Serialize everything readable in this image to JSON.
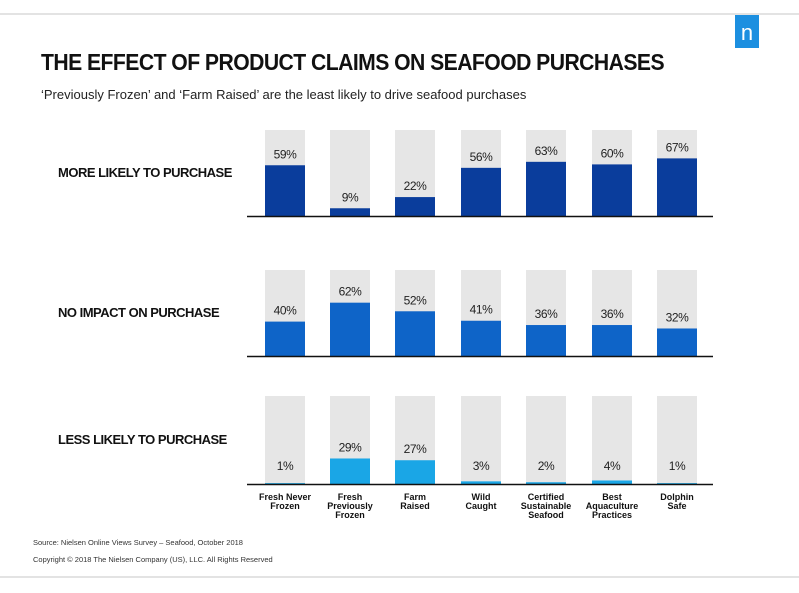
{
  "header": {
    "title": "THE EFFECT OF PRODUCT CLAIMS ON SEAFOOD PURCHASES",
    "subtitle": "‘Previously Frozen’ and ‘Farm Raised’ are the least likely to drive seafood purchases",
    "logo_letter": "n"
  },
  "chart_data": {
    "type": "bar",
    "title": "THE EFFECT OF PRODUCT CLAIMS ON SEAFOOD PURCHASES",
    "categories": [
      [
        "Fresh Never",
        "Frozen"
      ],
      [
        "Fresh",
        "Previously",
        "Frozen"
      ],
      [
        "Farm",
        "Raised"
      ],
      [
        "Wild",
        "Caught"
      ],
      [
        "Certified",
        "Sustainable",
        "Seafood"
      ],
      [
        "Best",
        "Aquaculture",
        "Practices"
      ],
      [
        "Dolphin",
        "Safe"
      ]
    ],
    "ylim": [
      0,
      100
    ],
    "series": [
      {
        "name": "MORE LIKELY TO PURCHASE",
        "values": [
          59,
          9,
          22,
          56,
          63,
          60,
          67
        ],
        "color": "#0a3d9c"
      },
      {
        "name": "NO IMPACT ON PURCHASE",
        "values": [
          40,
          62,
          52,
          41,
          36,
          36,
          32
        ],
        "color": "#0e64c8"
      },
      {
        "name": "LESS LIKELY TO PURCHASE",
        "values": [
          1,
          29,
          27,
          3,
          2,
          4,
          1
        ],
        "color": "#1aa6e6"
      }
    ],
    "background_color": "#e6e6e6"
  },
  "footer": {
    "source": "Source: Nielsen Online Views Survey – Seafood, October 2018",
    "copyright": "Copyright © 2018 The Nielsen Company (US), LLC. All Rights Reserved"
  }
}
